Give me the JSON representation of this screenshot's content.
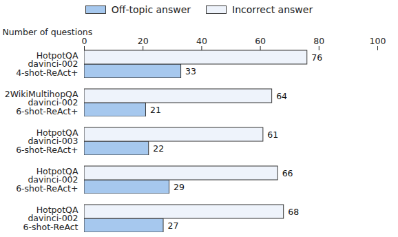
{
  "chart_data": {
    "type": "bar",
    "orientation": "horizontal",
    "x_label": "Number of questions",
    "categories": [
      "HotpotQA\ndavinci-002\n4-shot-ReAct+",
      "2WikiMultihopQA\ndavinci-002\n6-shot-ReAct+",
      "HotpotQA\ndavinci-003\n6-shot-ReAct+",
      "HotpotQA\ndavinci-002\n6-shot-ReAct+",
      "HotpotQA\ndavinci-002\n6-shot-ReAct"
    ],
    "series": [
      {
        "name": "Off-topic answer",
        "color": "#a6c8ee",
        "values": [
          33,
          21,
          22,
          29,
          27
        ]
      },
      {
        "name": "Incorrect answer",
        "color": "#eef3fb",
        "values": [
          76,
          64,
          61,
          66,
          68
        ]
      }
    ],
    "xlim": [
      0,
      100
    ],
    "xticks": [
      0,
      20,
      40,
      60,
      80,
      100
    ],
    "data_labels": true,
    "legend": "top",
    "grid": false
  }
}
